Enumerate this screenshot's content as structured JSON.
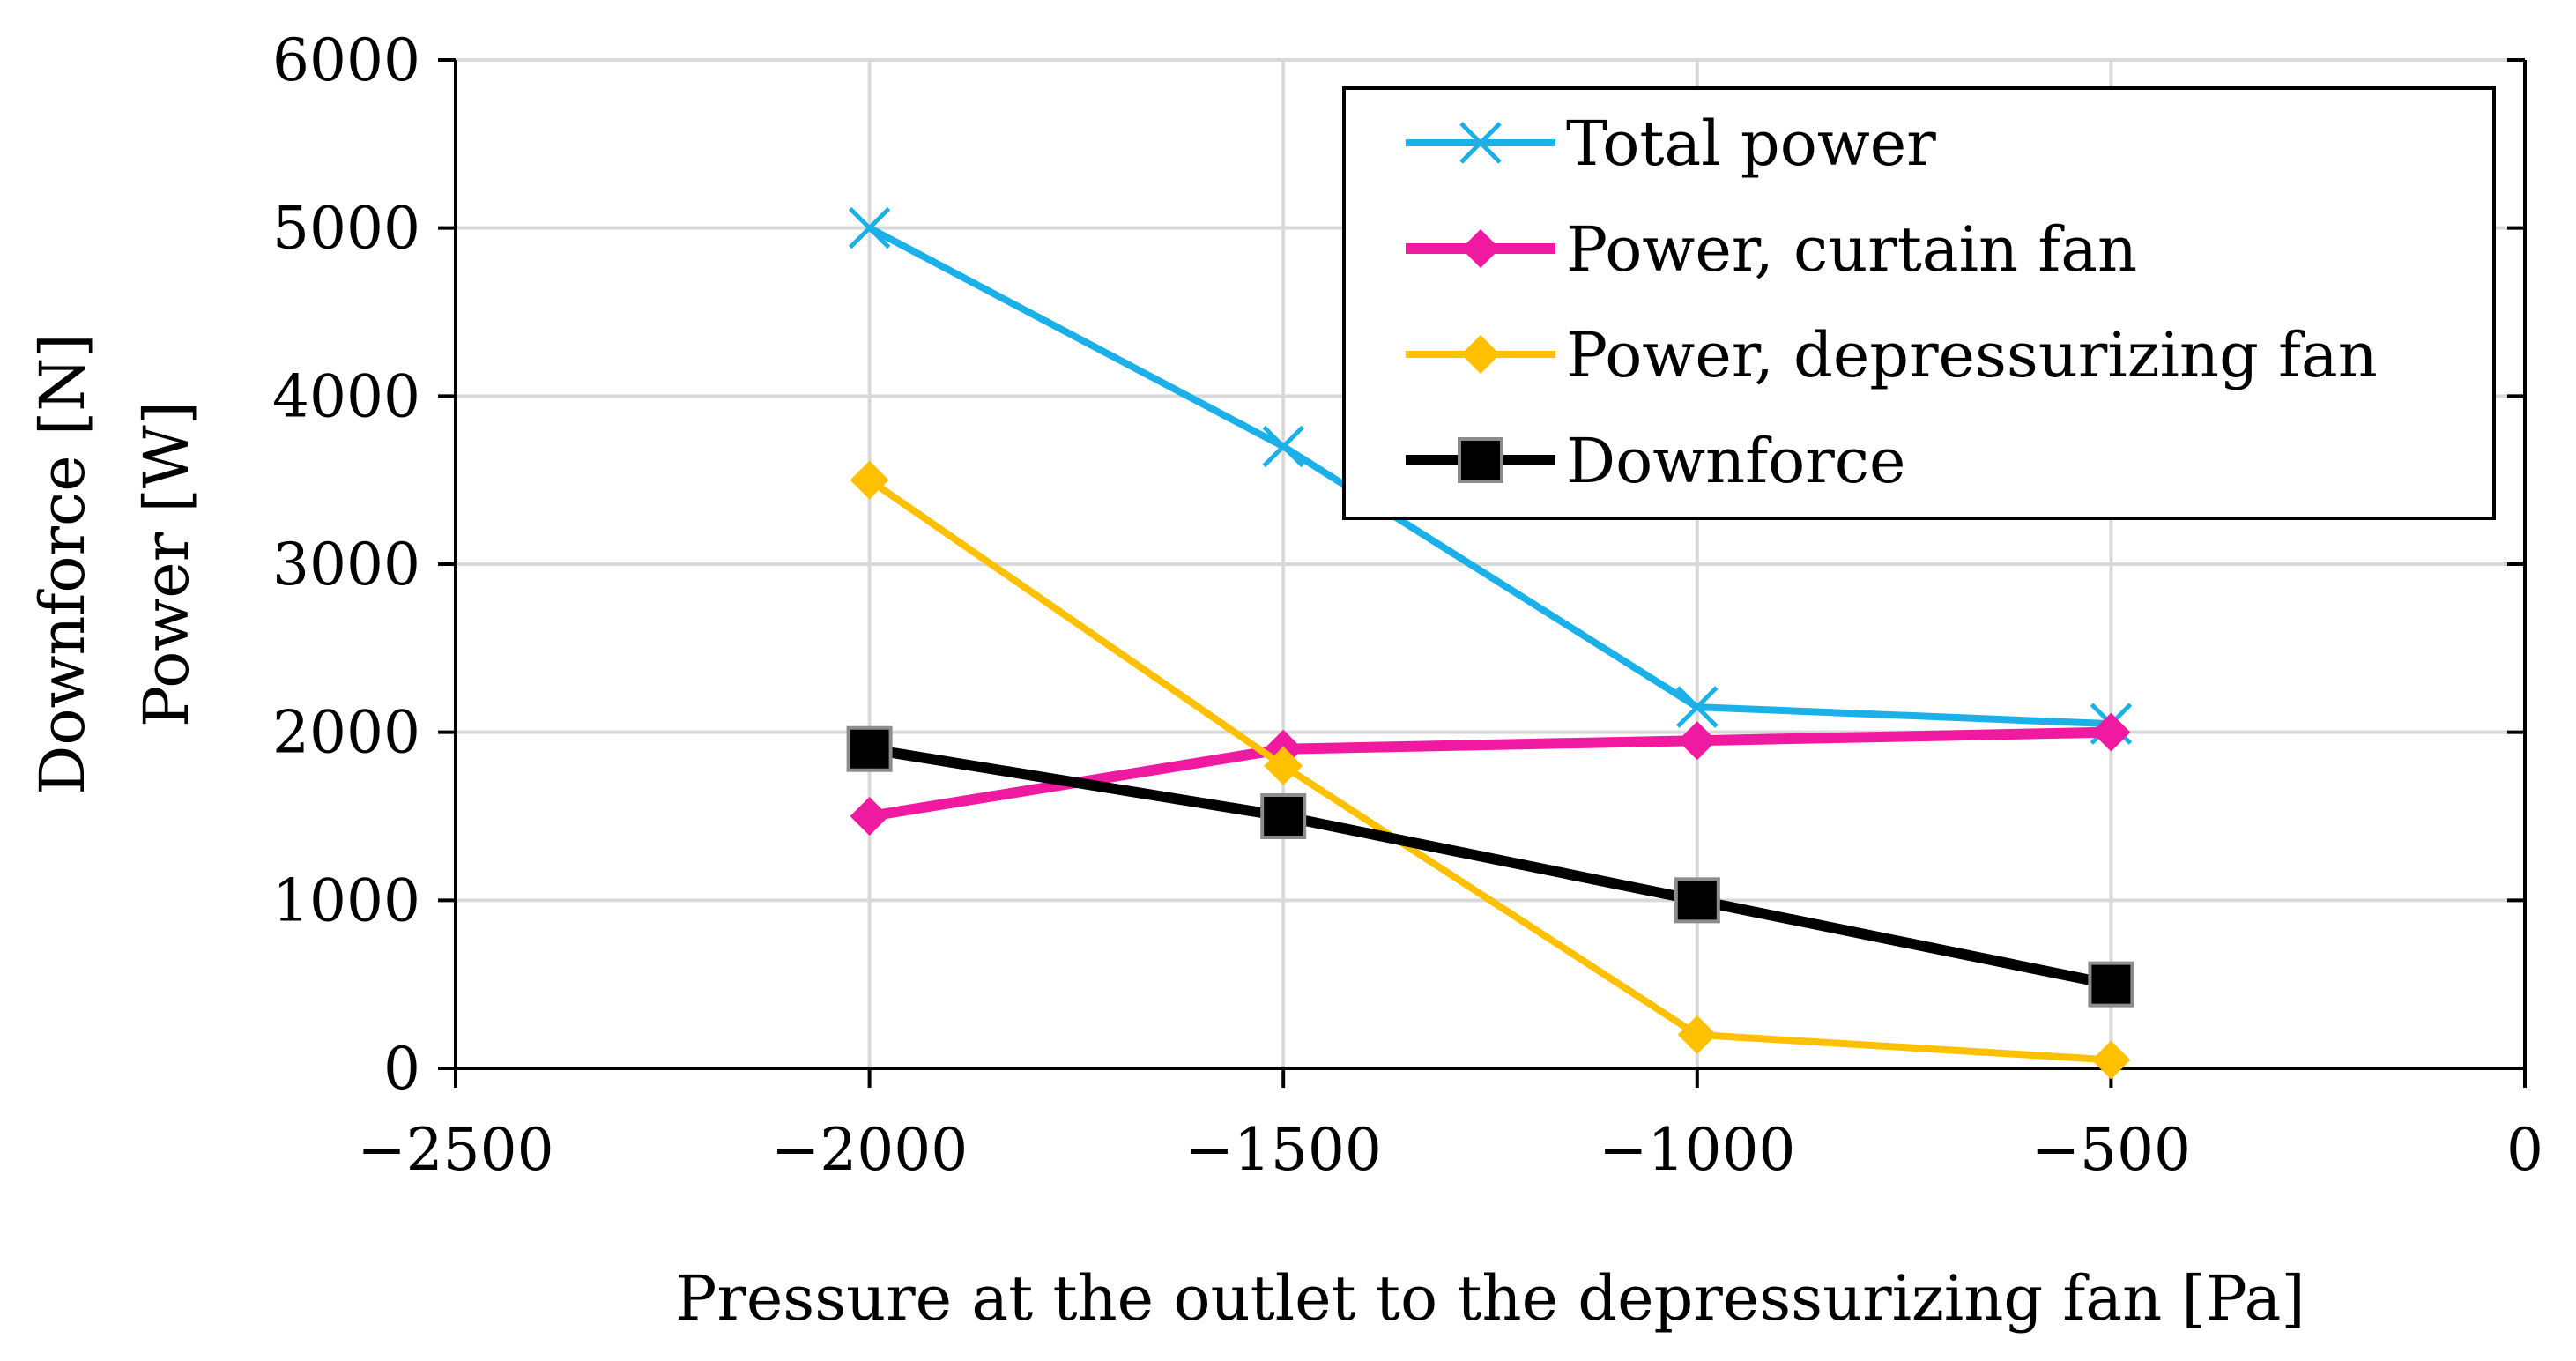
{
  "chart_data": {
    "type": "line",
    "xlabel": "Pressure at the outlet to the depressurizing fan [Pa]",
    "ylabel_lines": [
      "Downforce [N]",
      "Power [W]"
    ],
    "xlim": [
      -2500,
      0
    ],
    "ylim": [
      0,
      6000
    ],
    "x_ticks": [
      -2500,
      -2000,
      -1500,
      -1000,
      -500,
      0
    ],
    "x_tick_labels": [
      "−2500",
      "−2000",
      "−1500",
      "−1000",
      "−500",
      "0"
    ],
    "y_ticks": [
      0,
      1000,
      2000,
      3000,
      4000,
      5000,
      6000
    ],
    "y_tick_labels": [
      "0",
      "1000",
      "2000",
      "3000",
      "4000",
      "5000",
      "6000"
    ],
    "grid": true,
    "legend_position": "top-right",
    "x": [
      -2000,
      -1500,
      -1000,
      -500
    ],
    "series": [
      {
        "name": "Total power",
        "values": [
          5000,
          3700,
          2150,
          2050
        ],
        "color": "#1BB0E8",
        "marker": "x"
      },
      {
        "name": "Power, curtain fan",
        "values": [
          1500,
          1900,
          1950,
          2000
        ],
        "color": "#F01AA0",
        "marker": "diamond"
      },
      {
        "name": "Power, depressurizing fan",
        "values": [
          3500,
          1800,
          200,
          50
        ],
        "color": "#FFC000",
        "marker": "diamond"
      },
      {
        "name": "Downforce",
        "values": [
          1900,
          1500,
          1000,
          500
        ],
        "color": "#000000",
        "marker": "square"
      }
    ]
  }
}
